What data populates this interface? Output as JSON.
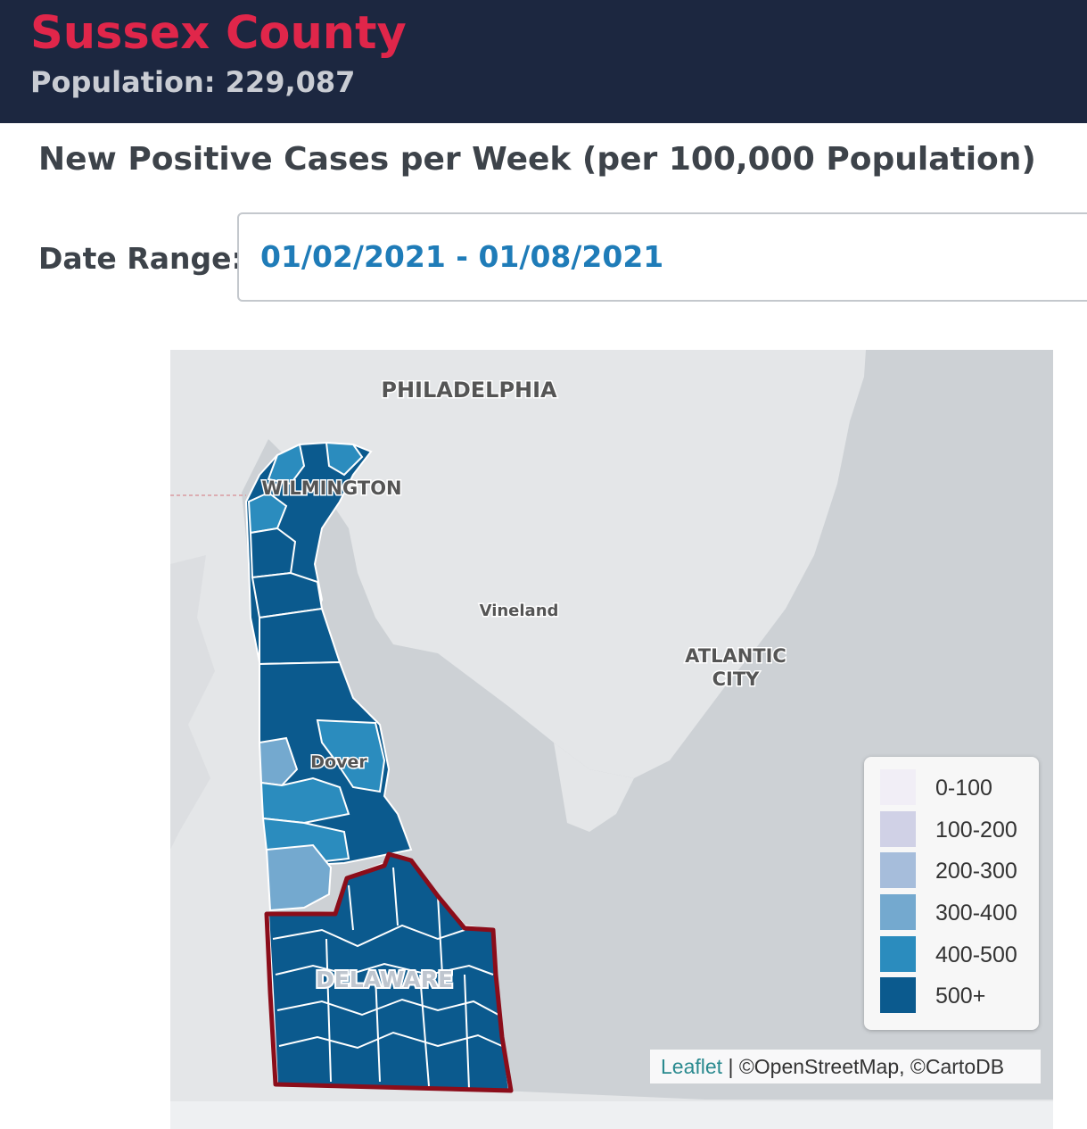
{
  "header": {
    "county_name": "Sussex County",
    "population": "Population: 229,087"
  },
  "chart": {
    "title": "New Positive Cases per Week (per 100,000 Population)"
  },
  "date_range": {
    "label": "Date Range:",
    "value": "01/02/2021 - 01/08/2021"
  },
  "map": {
    "place_labels": {
      "philadelphia": "PHILADELPHIA",
      "wilmington": "WILMINGTON",
      "vineland": "Vineland",
      "atlantic": "ATLANTIC",
      "city": "CITY",
      "dover": "Dover",
      "delaware": "DELAWARE"
    },
    "colors": {
      "water": "#cdd1d5",
      "land": "#e4e6e8",
      "selected_outline": "#8b0d1a"
    },
    "legend": [
      {
        "label": "0-100",
        "color": "#f1eef6"
      },
      {
        "label": "100-200",
        "color": "#d0d1e6"
      },
      {
        "label": "200-300",
        "color": "#a6bddb"
      },
      {
        "label": "300-400",
        "color": "#74a9cf"
      },
      {
        "label": "400-500",
        "color": "#2b8cbe"
      },
      {
        "label": "500+",
        "color": "#0b5a8e"
      }
    ],
    "attribution": {
      "leaflet": "Leaflet",
      "separator": " | ",
      "credits": "©OpenStreetMap, ©CartoDB"
    }
  }
}
